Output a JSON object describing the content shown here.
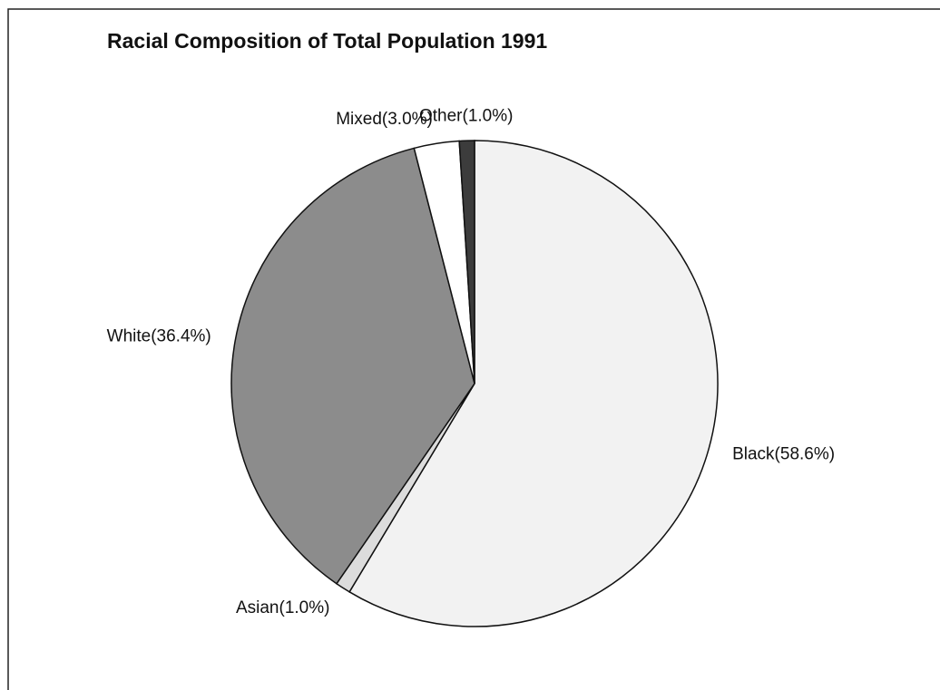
{
  "chart_data": {
    "type": "pie",
    "title": "Racial Composition of Total Population 1991",
    "values": [
      58.6,
      1.0,
      36.4,
      3.0,
      1.0
    ],
    "value_labels": [
      "Black(58.6%)",
      "Asian(1.0%)",
      "White(36.4%)",
      "Mixed(3.0%)",
      "Other(1.0%)"
    ],
    "colors": [
      "#f2f2f2",
      "#dcdcdc",
      "#8c8c8c",
      "#ffffff",
      "#3c3c3c"
    ]
  }
}
